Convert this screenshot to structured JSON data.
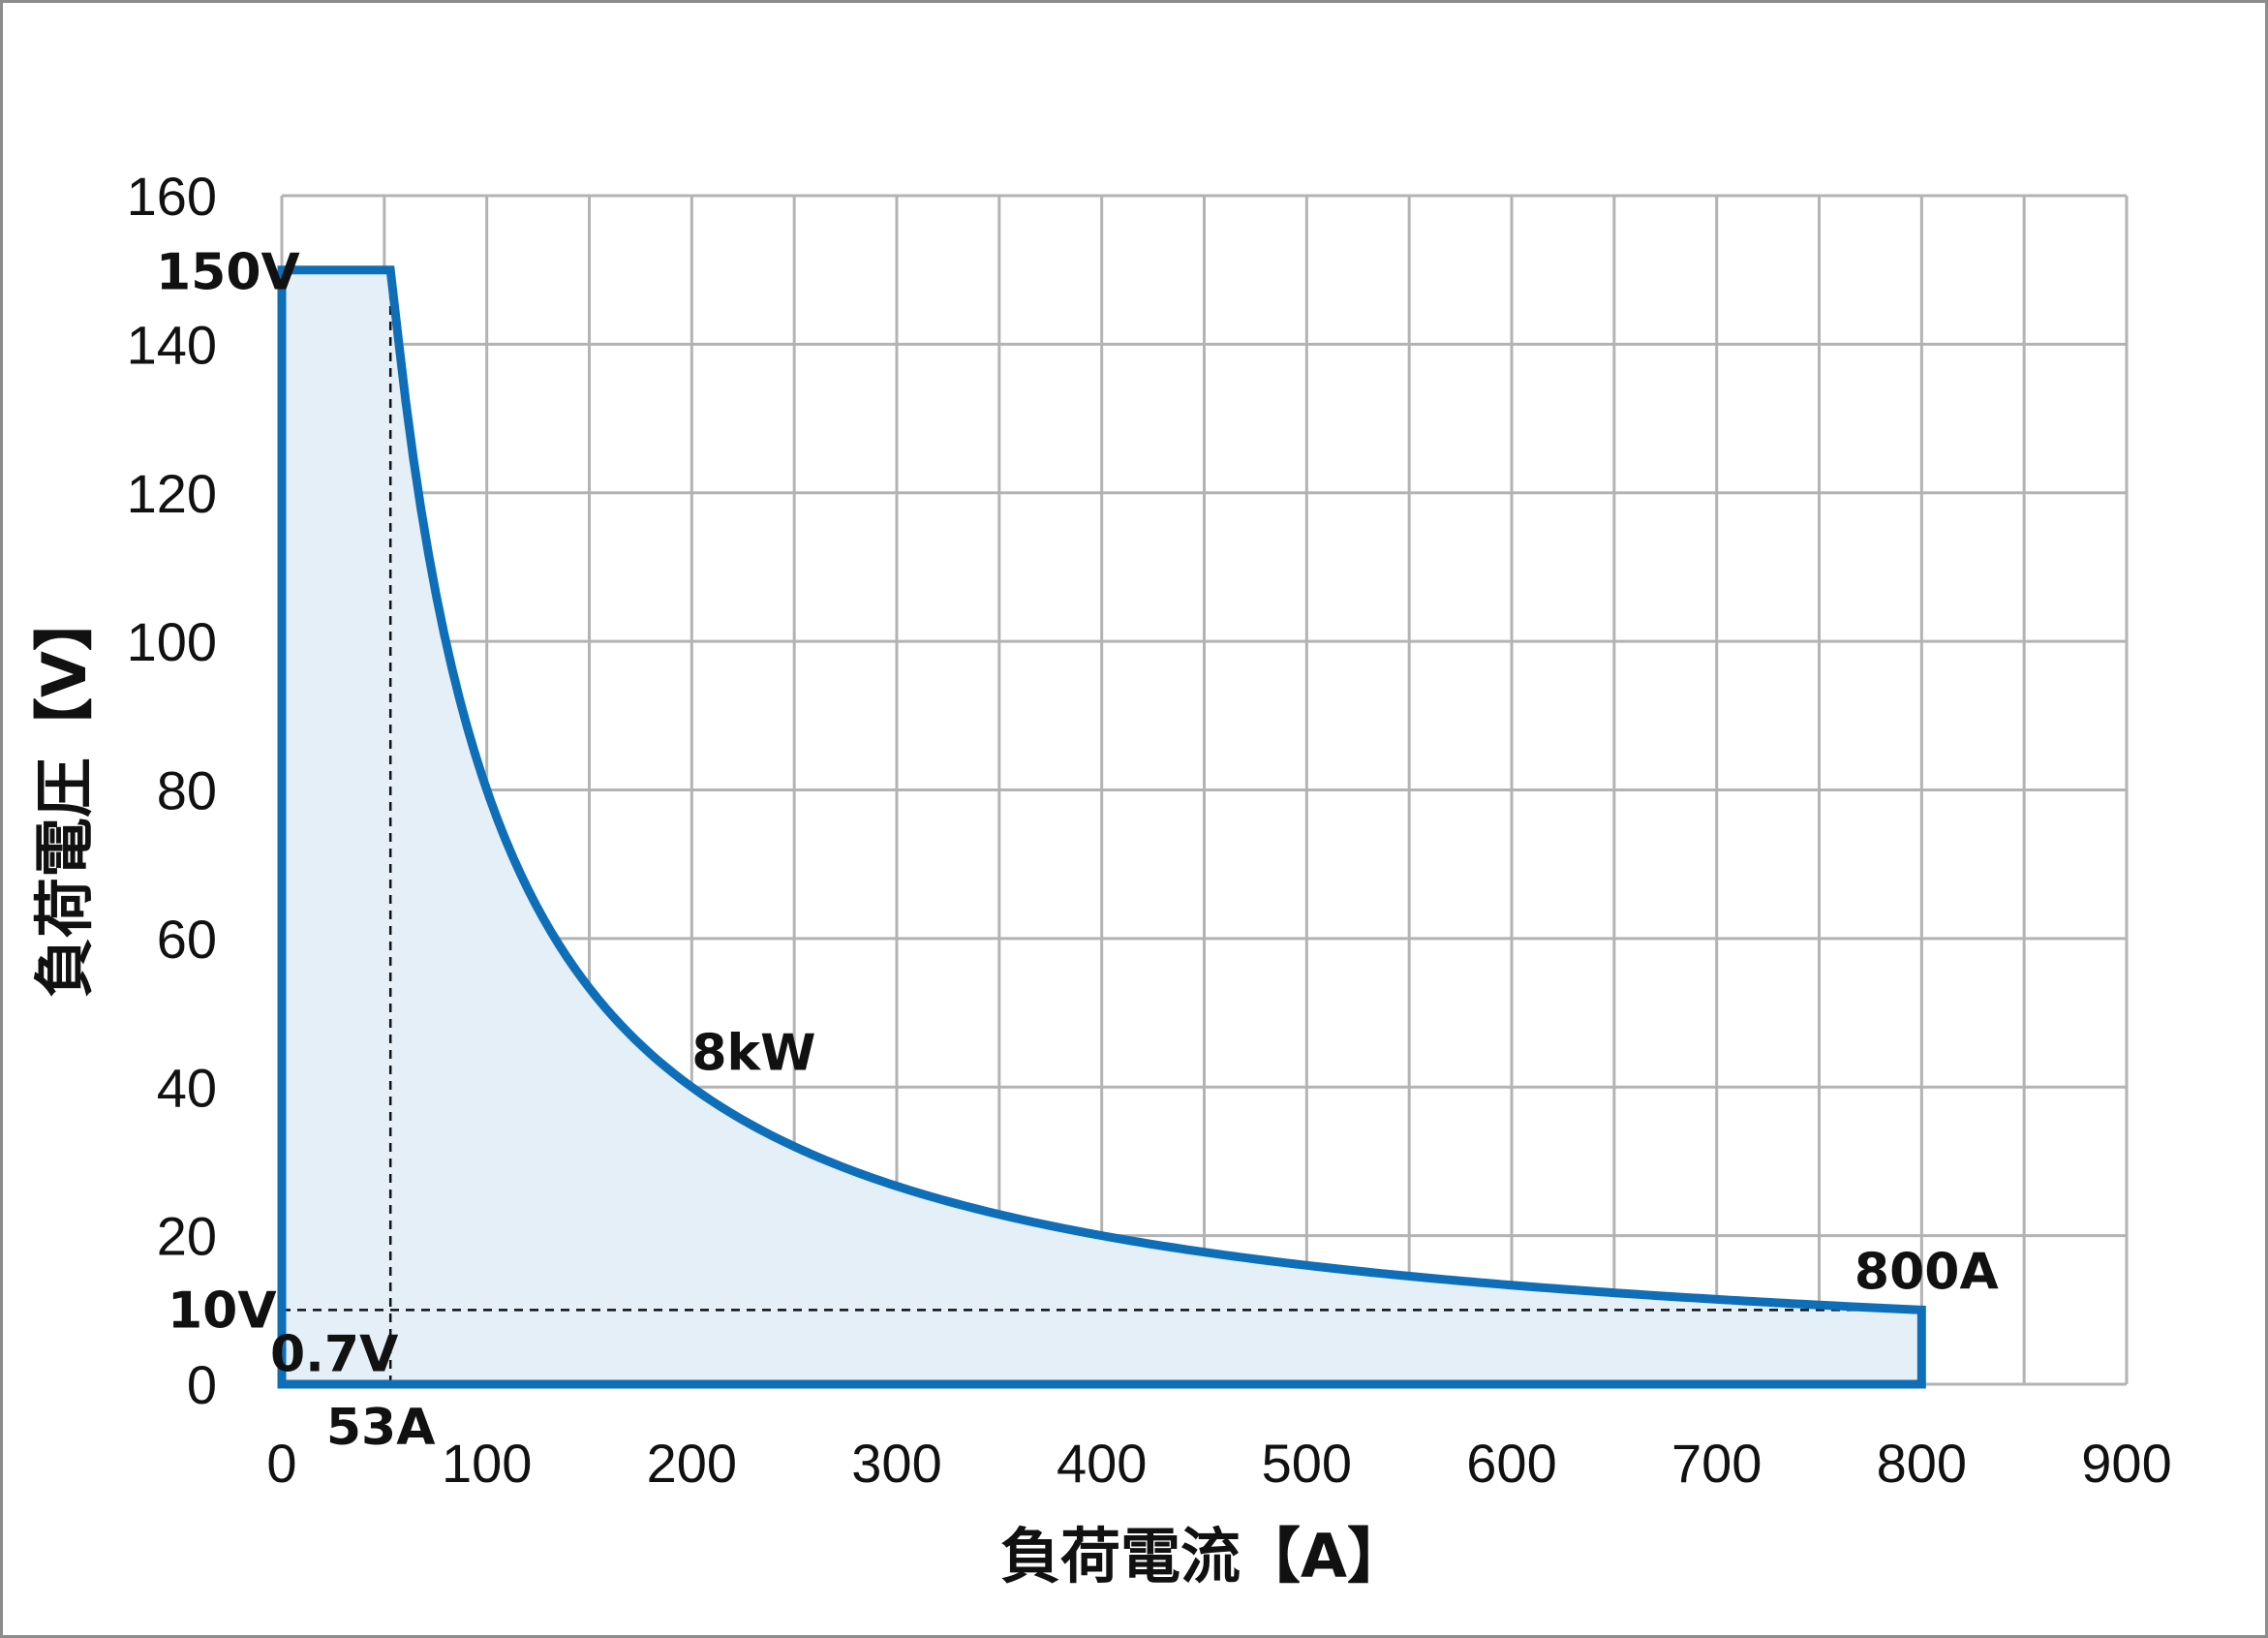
{
  "chart_data": {
    "type": "area",
    "xlabel": "負荷電流【A】",
    "ylabel": "負荷電圧【V】",
    "xlim": [
      0,
      900
    ],
    "ylim": [
      0,
      160
    ],
    "x_ticks": [
      0,
      100,
      200,
      300,
      400,
      500,
      600,
      700,
      800,
      900
    ],
    "y_ticks": [
      0,
      20,
      40,
      60,
      80,
      100,
      120,
      140,
      160
    ],
    "x_tick_labels": [
      "0",
      "100",
      "200",
      "300",
      "400",
      "500",
      "600",
      "700",
      "800",
      "900"
    ],
    "y_tick_labels": [
      "0",
      "20",
      "40",
      "60",
      "80",
      "100",
      "120",
      "140",
      "160"
    ],
    "grid": true,
    "grid_minor_x_step": 50,
    "grid_major_y_step": 20,
    "series": [
      {
        "color": "#0E6FB8",
        "fill": "#E4EFF8",
        "constant_voltage": {
          "x": [
            0,
            53
          ],
          "y": [
            150,
            150
          ]
        },
        "constant_power_w": 8000,
        "constant_power_range_a": [
          53,
          800
        ],
        "end_point": [
          800,
          10
        ],
        "baseline_y": 0
      }
    ],
    "reference_lines": [
      {
        "orientation": "vertical",
        "x": 53,
        "y_range": [
          0,
          150
        ],
        "style": "dashed"
      },
      {
        "orientation": "horizontal",
        "y": 10,
        "x_range": [
          0,
          800
        ],
        "style": "dashed"
      }
    ],
    "annotations": [
      {
        "text": "150V",
        "x": 0,
        "y": 150
      },
      {
        "text": "10V",
        "x": 0,
        "y": 10
      },
      {
        "text": "0.7V",
        "x": 0,
        "y": 0.7
      },
      {
        "text": "53A",
        "x": 53,
        "y": 0
      },
      {
        "text": "8kW",
        "x": 200,
        "y": 40
      },
      {
        "text": "800A",
        "x": 800,
        "y": 10
      }
    ]
  }
}
